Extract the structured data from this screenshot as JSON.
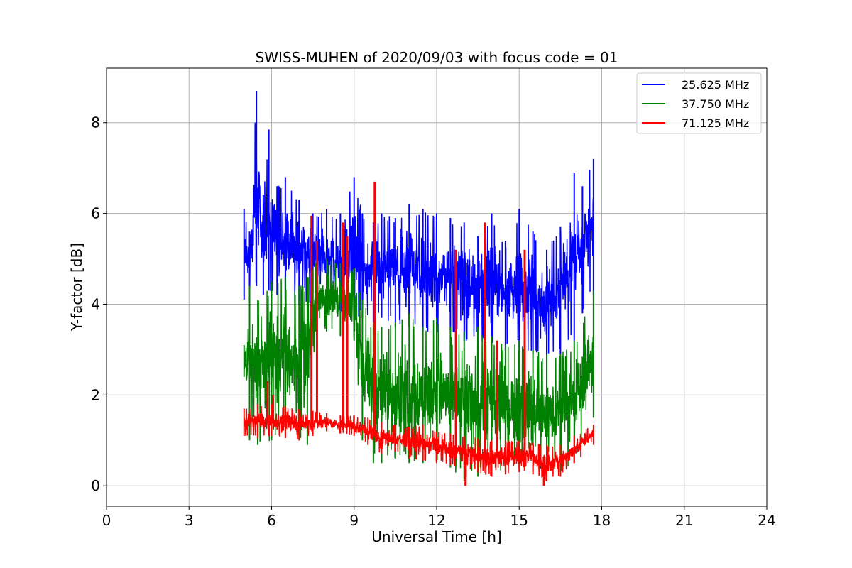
{
  "chart_data": {
    "type": "line",
    "title": "SWISS-MUHEN of 2020/09/03 with focus code = 01",
    "xlabel": "Universal Time [h]",
    "ylabel": "Y-factor [dB]",
    "xlim": [
      0,
      24
    ],
    "ylim": [
      -0.45,
      9.2
    ],
    "xticks": [
      0,
      3,
      6,
      9,
      12,
      15,
      18,
      21,
      24
    ],
    "yticks": [
      0,
      2,
      4,
      6,
      8
    ],
    "grid": true,
    "legend_position": "top-right",
    "series": [
      {
        "name": "25.625 MHz",
        "color": "#0000ff",
        "x": [
          5.0,
          5.2,
          5.45,
          5.7,
          5.9,
          6.2,
          6.5,
          7.0,
          7.5,
          8.0,
          8.5,
          9.0,
          9.3,
          9.7,
          10.0,
          10.5,
          11.0,
          11.5,
          12.0,
          12.5,
          13.0,
          13.5,
          14.0,
          14.5,
          15.0,
          15.5,
          16.0,
          16.5,
          17.0,
          17.3,
          17.7
        ],
        "low": [
          4.1,
          4.3,
          4.4,
          4.2,
          4.3,
          4.2,
          4.1,
          4.0,
          4.0,
          4.1,
          3.8,
          3.7,
          3.7,
          3.6,
          3.7,
          3.5,
          3.5,
          3.4,
          3.3,
          3.4,
          3.2,
          3.1,
          3.1,
          3.0,
          3.0,
          2.9,
          2.8,
          2.9,
          3.2,
          3.8,
          4.2
        ],
        "high": [
          6.1,
          5.6,
          8.7,
          6.4,
          7.85,
          6.6,
          6.8,
          6.3,
          6.0,
          6.1,
          6.0,
          6.8,
          6.0,
          5.8,
          6.0,
          5.9,
          6.2,
          6.1,
          6.0,
          5.9,
          5.8,
          5.5,
          6.0,
          5.4,
          6.1,
          5.6,
          5.2,
          5.7,
          6.9,
          6.6,
          7.2
        ]
      },
      {
        "name": "37.750 MHz",
        "color": "#008000",
        "x": [
          5.0,
          5.2,
          5.5,
          6.0,
          6.5,
          7.0,
          7.3,
          7.6,
          8.0,
          8.5,
          9.0,
          9.3,
          9.7,
          10.0,
          10.5,
          11.0,
          11.5,
          12.0,
          12.5,
          13.0,
          13.5,
          14.0,
          14.5,
          15.0,
          15.5,
          16.0,
          16.5,
          17.0,
          17.7
        ],
        "low": [
          2.4,
          1.0,
          0.9,
          1.0,
          1.1,
          1.0,
          0.9,
          3.4,
          3.4,
          3.3,
          3.2,
          1.0,
          0.5,
          0.5,
          0.6,
          0.5,
          0.5,
          0.5,
          0.4,
          0.1,
          0.2,
          0.3,
          0.3,
          0.4,
          0.3,
          0.2,
          0.3,
          0.5,
          1.5
        ],
        "high": [
          3.1,
          4.4,
          4.1,
          4.5,
          4.6,
          4.4,
          4.6,
          4.9,
          5.0,
          4.9,
          4.8,
          4.1,
          3.6,
          3.5,
          3.6,
          3.8,
          3.5,
          3.7,
          3.5,
          3.4,
          3.5,
          3.3,
          3.1,
          3.2,
          3.0,
          2.9,
          2.9,
          3.2,
          4.3
        ]
      },
      {
        "name": "71.125 MHz",
        "color": "#ff0000",
        "x": [
          5.0,
          5.5,
          6.0,
          6.5,
          7.0,
          7.5,
          8.0,
          8.5,
          9.0,
          9.5,
          10.0,
          10.5,
          11.0,
          11.5,
          12.0,
          12.5,
          13.0,
          13.5,
          14.0,
          14.5,
          15.0,
          15.5,
          16.0,
          16.5,
          17.0,
          17.7
        ],
        "low": [
          1.1,
          1.05,
          1.1,
          1.05,
          1.0,
          1.1,
          1.2,
          1.15,
          1.1,
          0.9,
          0.7,
          0.75,
          0.6,
          0.55,
          0.5,
          0.45,
          0.4,
          0.3,
          0.2,
          0.25,
          0.3,
          0.25,
          0.1,
          0.2,
          0.5,
          0.9
        ],
        "high": [
          1.7,
          1.8,
          1.8,
          1.75,
          1.7,
          1.65,
          1.6,
          1.55,
          1.55,
          1.5,
          1.4,
          1.35,
          1.3,
          1.35,
          1.2,
          1.15,
          1.1,
          1.05,
          1.0,
          1.0,
          1.0,
          0.95,
          0.9,
          0.9,
          1.1,
          1.35
        ],
        "spikes": [
          {
            "x": 5.85,
            "y": 2.3
          },
          {
            "x": 6.05,
            "y": 2.0
          },
          {
            "x": 7.45,
            "y": 5.95
          },
          {
            "x": 7.65,
            "y": 5.4
          },
          {
            "x": 8.6,
            "y": 5.8
          },
          {
            "x": 8.75,
            "y": 5.5
          },
          {
            "x": 9.75,
            "y": 6.7
          },
          {
            "x": 12.7,
            "y": 5.2
          },
          {
            "x": 13.05,
            "y": 0.0
          },
          {
            "x": 13.75,
            "y": 5.8
          },
          {
            "x": 14.2,
            "y": 3.2
          },
          {
            "x": 15.2,
            "y": 5.2
          },
          {
            "x": 15.9,
            "y": 0.0
          }
        ]
      }
    ]
  }
}
